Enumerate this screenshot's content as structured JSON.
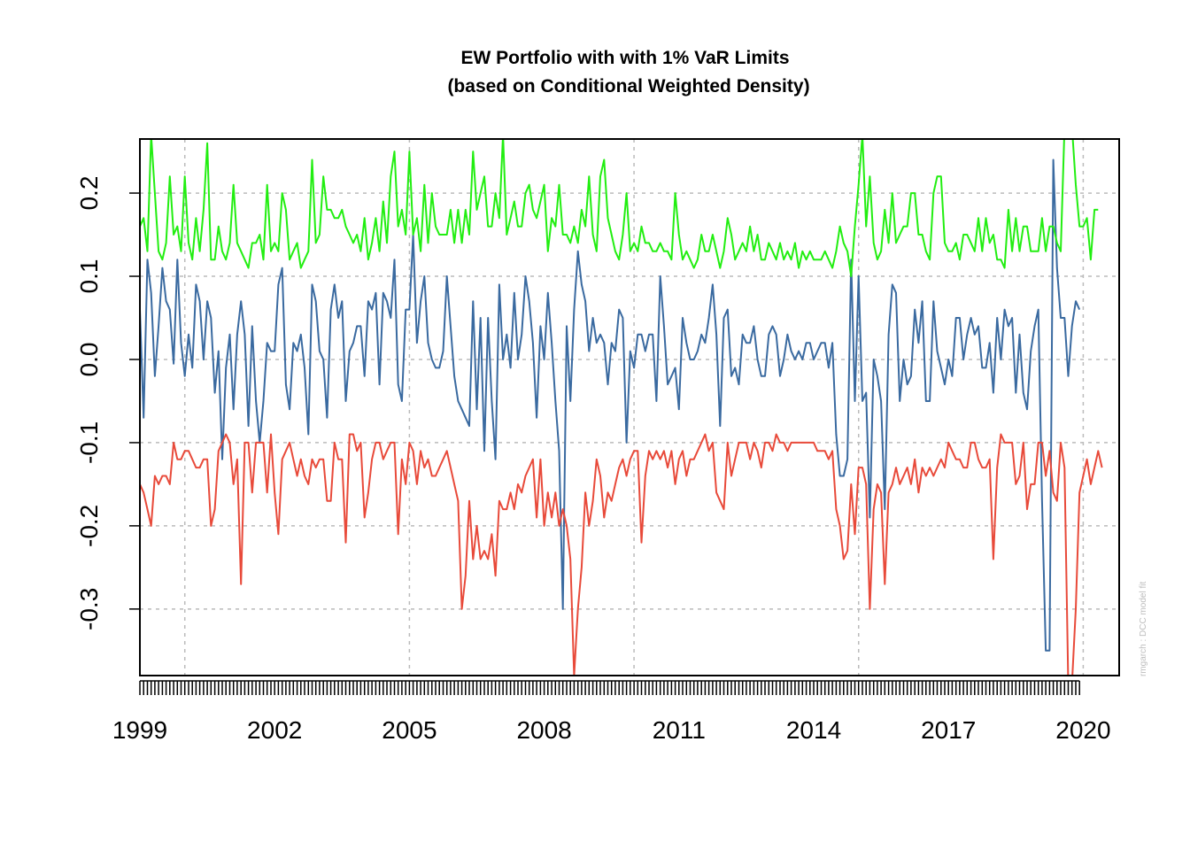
{
  "chart_data": {
    "type": "line",
    "title": "EW Portfolio with with 1% VaR Limits",
    "subtitle": "(based on Conditional Weighted Density)",
    "xlabel": "",
    "ylabel": "",
    "watermark": "rmgarch  :  DCC model fit",
    "xlim": [
      1999.0,
      2020.8
    ],
    "ylim": [
      -0.38,
      0.265
    ],
    "x_start": 1999.0,
    "x_step": 0.0833333,
    "x_ticks": [
      1999,
      2002,
      2005,
      2008,
      2011,
      2014,
      2017,
      2020
    ],
    "x_tick_labels": [
      "1999",
      "2002",
      "2005",
      "2008",
      "2011",
      "2014",
      "2017",
      "2020"
    ],
    "y_ticks": [
      0.2,
      0.1,
      0.0,
      -0.1,
      -0.2,
      -0.3
    ],
    "y_tick_labels": [
      "0.2",
      "0.1",
      "0.0",
      "-0.1",
      "-0.2",
      "-0.3"
    ],
    "v_grid": [
      2000,
      2005,
      2010,
      2015,
      2020
    ],
    "grid": true,
    "legend": "none",
    "colors": {
      "returns": "#3a6aa0",
      "lower": "#e84a3a",
      "upper": "#22ee11",
      "grid": "#bbbbbb"
    },
    "series": [
      {
        "key": "returns",
        "values": [
          0.06,
          -0.07,
          0.12,
          0.08,
          -0.02,
          0.04,
          0.11,
          0.07,
          0.06,
          -0.005,
          0.12,
          0.02,
          -0.02,
          0.03,
          -0.01,
          0.09,
          0.07,
          0.0,
          0.07,
          0.05,
          -0.04,
          0.01,
          -0.12,
          -0.01,
          0.03,
          -0.06,
          0.03,
          0.07,
          0.03,
          -0.08,
          0.04,
          -0.05,
          -0.1,
          -0.05,
          0.02,
          0.01,
          0.01,
          0.09,
          0.11,
          -0.03,
          -0.06,
          0.02,
          0.01,
          0.03,
          -0.01,
          -0.09,
          0.09,
          0.07,
          0.01,
          0.0,
          -0.07,
          0.06,
          0.09,
          0.05,
          0.07,
          -0.05,
          0.01,
          0.02,
          0.04,
          0.04,
          -0.02,
          0.07,
          0.06,
          0.08,
          -0.03,
          0.08,
          0.07,
          0.05,
          0.12,
          -0.03,
          -0.05,
          0.06,
          0.06,
          0.15,
          0.02,
          0.07,
          0.1,
          0.02,
          0.0,
          -0.01,
          -0.01,
          0.01,
          0.1,
          0.04,
          -0.02,
          -0.05,
          -0.06,
          -0.07,
          -0.08,
          0.07,
          -0.06,
          0.05,
          -0.11,
          0.05,
          -0.05,
          -0.12,
          0.09,
          0.0,
          0.03,
          -0.01,
          0.08,
          0.0,
          0.03,
          0.1,
          0.07,
          0.02,
          -0.07,
          0.04,
          0.0,
          0.08,
          0.02,
          -0.05,
          -0.11,
          -0.3,
          0.04,
          -0.05,
          0.06,
          0.13,
          0.09,
          0.07,
          0.01,
          0.05,
          0.02,
          0.03,
          0.02,
          -0.03,
          0.02,
          0.01,
          0.06,
          0.05,
          -0.1,
          0.01,
          -0.01,
          0.03,
          0.03,
          0.01,
          0.03,
          0.03,
          -0.05,
          0.1,
          0.04,
          -0.03,
          -0.02,
          -0.01,
          -0.06,
          0.05,
          0.02,
          0.0,
          0.0,
          0.01,
          0.03,
          0.02,
          0.05,
          0.09,
          0.03,
          -0.08,
          0.05,
          0.06,
          -0.02,
          -0.01,
          -0.03,
          0.03,
          0.02,
          0.02,
          0.04,
          0.0,
          -0.02,
          -0.02,
          0.03,
          0.04,
          0.03,
          -0.02,
          0.0,
          0.03,
          0.01,
          0.0,
          0.01,
          0.0,
          0.02,
          0.02,
          0.0,
          0.01,
          0.02,
          0.02,
          -0.01,
          0.02,
          -0.09,
          -0.14,
          -0.14,
          -0.12,
          0.12,
          -0.05,
          0.1,
          -0.05,
          -0.04,
          -0.19,
          0.0,
          -0.02,
          -0.05,
          -0.18,
          0.03,
          0.09,
          0.08,
          -0.05,
          0.0,
          -0.03,
          -0.02,
          0.06,
          0.02,
          0.07,
          -0.05,
          -0.05,
          0.07,
          0.01,
          -0.01,
          -0.03,
          0.0,
          -0.02,
          0.05,
          0.05,
          0.0,
          0.03,
          0.05,
          0.03,
          0.04,
          -0.01,
          -0.01,
          0.02,
          -0.04,
          0.05,
          0.0,
          0.06,
          0.04,
          0.05,
          -0.04,
          0.03,
          -0.04,
          -0.06,
          0.01,
          0.04,
          0.06,
          -0.17,
          -0.35,
          -0.35,
          0.24,
          0.11,
          0.05,
          0.05,
          -0.02,
          0.04,
          0.07,
          0.06
        ]
      },
      {
        "key": "lower",
        "values": [
          -0.15,
          -0.16,
          -0.18,
          -0.2,
          -0.14,
          -0.15,
          -0.14,
          -0.14,
          -0.15,
          -0.1,
          -0.12,
          -0.12,
          -0.11,
          -0.11,
          -0.12,
          -0.13,
          -0.13,
          -0.12,
          -0.12,
          -0.2,
          -0.18,
          -0.11,
          -0.1,
          -0.09,
          -0.1,
          -0.15,
          -0.12,
          -0.27,
          -0.1,
          -0.1,
          -0.16,
          -0.1,
          -0.1,
          -0.1,
          -0.16,
          -0.09,
          -0.16,
          -0.21,
          -0.12,
          -0.11,
          -0.1,
          -0.12,
          -0.14,
          -0.12,
          -0.14,
          -0.15,
          -0.12,
          -0.13,
          -0.12,
          -0.12,
          -0.17,
          -0.17,
          -0.1,
          -0.12,
          -0.12,
          -0.22,
          -0.09,
          -0.09,
          -0.11,
          -0.1,
          -0.19,
          -0.16,
          -0.12,
          -0.1,
          -0.1,
          -0.12,
          -0.11,
          -0.1,
          -0.1,
          -0.21,
          -0.12,
          -0.15,
          -0.1,
          -0.11,
          -0.15,
          -0.11,
          -0.13,
          -0.12,
          -0.14,
          -0.14,
          -0.13,
          -0.12,
          -0.11,
          -0.13,
          -0.15,
          -0.17,
          -0.3,
          -0.26,
          -0.17,
          -0.24,
          -0.2,
          -0.24,
          -0.23,
          -0.24,
          -0.21,
          -0.26,
          -0.17,
          -0.18,
          -0.18,
          -0.16,
          -0.18,
          -0.15,
          -0.16,
          -0.14,
          -0.13,
          -0.12,
          -0.19,
          -0.12,
          -0.2,
          -0.16,
          -0.19,
          -0.16,
          -0.2,
          -0.18,
          -0.2,
          -0.24,
          -0.38,
          -0.3,
          -0.25,
          -0.16,
          -0.2,
          -0.17,
          -0.12,
          -0.14,
          -0.19,
          -0.16,
          -0.17,
          -0.15,
          -0.13,
          -0.12,
          -0.14,
          -0.12,
          -0.11,
          -0.11,
          -0.22,
          -0.14,
          -0.11,
          -0.12,
          -0.11,
          -0.12,
          -0.11,
          -0.13,
          -0.11,
          -0.15,
          -0.12,
          -0.11,
          -0.14,
          -0.12,
          -0.12,
          -0.11,
          -0.1,
          -0.09,
          -0.11,
          -0.1,
          -0.16,
          -0.17,
          -0.18,
          -0.1,
          -0.14,
          -0.12,
          -0.1,
          -0.1,
          -0.1,
          -0.12,
          -0.1,
          -0.11,
          -0.13,
          -0.1,
          -0.1,
          -0.11,
          -0.09,
          -0.1,
          -0.1,
          -0.11,
          -0.1,
          -0.1,
          -0.1,
          -0.1,
          -0.1,
          -0.1,
          -0.1,
          -0.11,
          -0.11,
          -0.11,
          -0.12,
          -0.11,
          -0.18,
          -0.2,
          -0.24,
          -0.23,
          -0.15,
          -0.21,
          -0.13,
          -0.13,
          -0.15,
          -0.3,
          -0.18,
          -0.15,
          -0.16,
          -0.27,
          -0.16,
          -0.15,
          -0.13,
          -0.15,
          -0.14,
          -0.13,
          -0.15,
          -0.12,
          -0.16,
          -0.13,
          -0.14,
          -0.13,
          -0.14,
          -0.13,
          -0.12,
          -0.13,
          -0.1,
          -0.11,
          -0.12,
          -0.12,
          -0.13,
          -0.13,
          -0.1,
          -0.1,
          -0.12,
          -0.13,
          -0.13,
          -0.12,
          -0.24,
          -0.13,
          -0.09,
          -0.1,
          -0.1,
          -0.1,
          -0.15,
          -0.14,
          -0.1,
          -0.18,
          -0.15,
          -0.15,
          -0.1,
          -0.1,
          -0.14,
          -0.11,
          -0.16,
          -0.17,
          -0.1,
          -0.13,
          -0.39,
          -0.39,
          -0.3,
          -0.16,
          -0.14,
          -0.12,
          -0.15,
          -0.13,
          -0.11,
          -0.13
        ]
      },
      {
        "key": "upper",
        "values": [
          0.16,
          0.17,
          0.13,
          0.27,
          0.2,
          0.13,
          0.12,
          0.14,
          0.22,
          0.15,
          0.16,
          0.13,
          0.22,
          0.14,
          0.12,
          0.17,
          0.13,
          0.18,
          0.26,
          0.12,
          0.12,
          0.16,
          0.13,
          0.12,
          0.14,
          0.21,
          0.14,
          0.13,
          0.12,
          0.11,
          0.14,
          0.14,
          0.15,
          0.12,
          0.21,
          0.13,
          0.14,
          0.13,
          0.2,
          0.18,
          0.12,
          0.13,
          0.14,
          0.11,
          0.12,
          0.13,
          0.24,
          0.14,
          0.15,
          0.22,
          0.18,
          0.18,
          0.17,
          0.17,
          0.18,
          0.16,
          0.15,
          0.14,
          0.15,
          0.13,
          0.17,
          0.12,
          0.14,
          0.17,
          0.13,
          0.19,
          0.14,
          0.22,
          0.25,
          0.16,
          0.18,
          0.15,
          0.25,
          0.15,
          0.17,
          0.13,
          0.21,
          0.14,
          0.2,
          0.16,
          0.15,
          0.15,
          0.15,
          0.18,
          0.14,
          0.18,
          0.14,
          0.18,
          0.15,
          0.25,
          0.18,
          0.2,
          0.22,
          0.16,
          0.16,
          0.2,
          0.17,
          0.27,
          0.15,
          0.17,
          0.19,
          0.16,
          0.16,
          0.2,
          0.21,
          0.18,
          0.17,
          0.19,
          0.21,
          0.13,
          0.17,
          0.16,
          0.21,
          0.15,
          0.15,
          0.14,
          0.16,
          0.14,
          0.18,
          0.16,
          0.22,
          0.15,
          0.13,
          0.22,
          0.24,
          0.17,
          0.15,
          0.13,
          0.12,
          0.15,
          0.2,
          0.13,
          0.14,
          0.13,
          0.16,
          0.14,
          0.14,
          0.13,
          0.13,
          0.14,
          0.13,
          0.13,
          0.12,
          0.2,
          0.15,
          0.12,
          0.13,
          0.12,
          0.11,
          0.12,
          0.15,
          0.13,
          0.13,
          0.15,
          0.13,
          0.11,
          0.13,
          0.17,
          0.15,
          0.12,
          0.13,
          0.14,
          0.13,
          0.16,
          0.13,
          0.15,
          0.12,
          0.12,
          0.14,
          0.13,
          0.12,
          0.14,
          0.12,
          0.13,
          0.12,
          0.14,
          0.11,
          0.13,
          0.12,
          0.13,
          0.12,
          0.12,
          0.12,
          0.13,
          0.12,
          0.11,
          0.13,
          0.16,
          0.14,
          0.13,
          0.1,
          0.16,
          0.21,
          0.27,
          0.16,
          0.22,
          0.14,
          0.12,
          0.13,
          0.18,
          0.14,
          0.2,
          0.14,
          0.15,
          0.16,
          0.16,
          0.2,
          0.2,
          0.15,
          0.15,
          0.13,
          0.12,
          0.2,
          0.22,
          0.22,
          0.14,
          0.13,
          0.13,
          0.14,
          0.12,
          0.15,
          0.15,
          0.14,
          0.13,
          0.17,
          0.13,
          0.17,
          0.14,
          0.15,
          0.12,
          0.12,
          0.11,
          0.18,
          0.13,
          0.17,
          0.13,
          0.16,
          0.16,
          0.13,
          0.13,
          0.13,
          0.17,
          0.13,
          0.16,
          0.16,
          0.14,
          0.13,
          0.28,
          0.28,
          0.28,
          0.21,
          0.16,
          0.16,
          0.17,
          0.12,
          0.18,
          0.18
        ]
      }
    ]
  }
}
